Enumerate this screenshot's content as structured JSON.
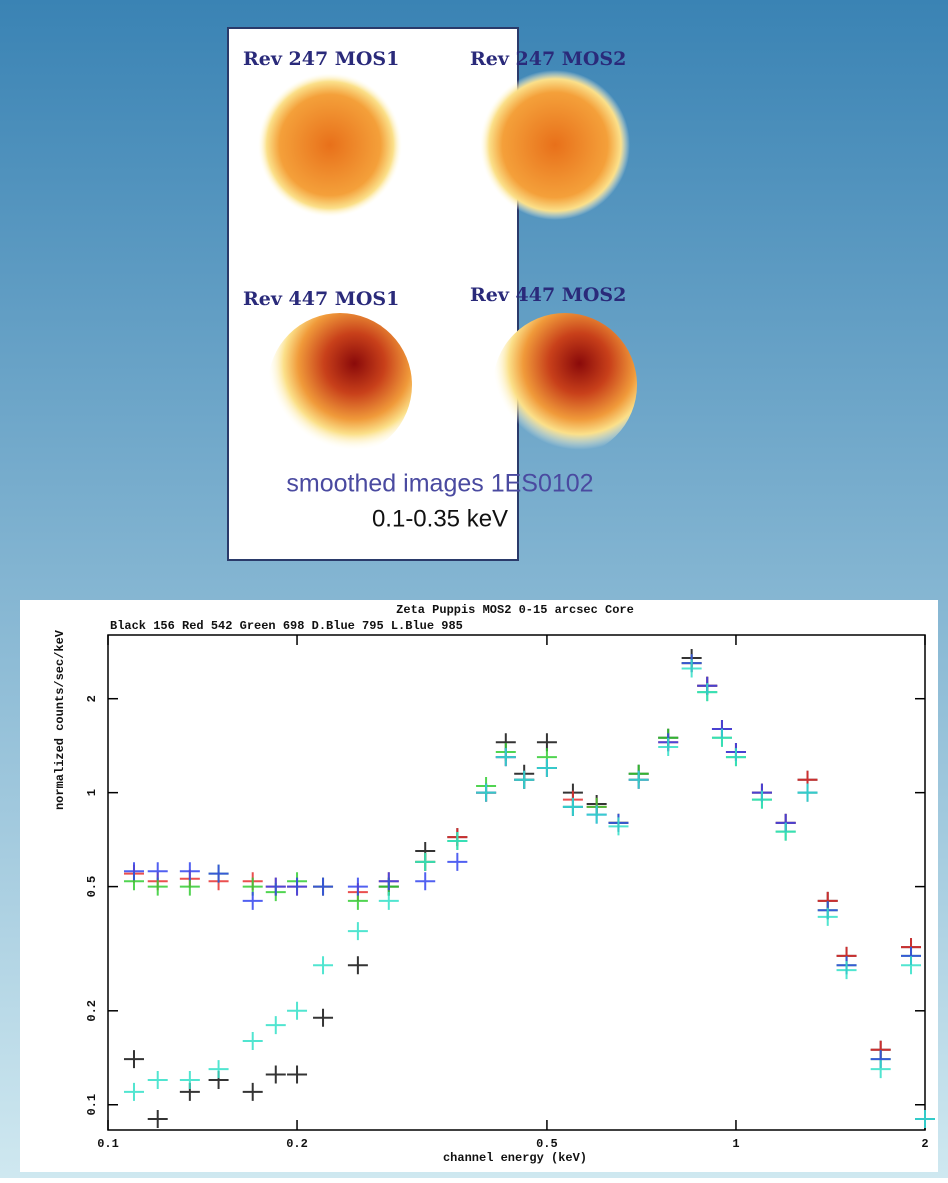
{
  "panel": {
    "images": [
      {
        "label": "Rev 247 MOS1"
      },
      {
        "label": "Rev 247 MOS2"
      },
      {
        "label": "Rev 447 MOS1"
      },
      {
        "label": "Rev 447 MOS2"
      }
    ],
    "caption": "smoothed images 1ES0102",
    "band": "0.1-0.35 keV"
  },
  "chart_data": {
    "type": "scatter",
    "title": "Zeta Puppis  MOS2  0-15 arcsec Core",
    "subtitle": "Black 156   Red 542   Green 698   D.Blue 795   L.Blue 985",
    "x_label": "channel energy (keV)",
    "y_label": "normalized counts/sec/keV",
    "log_x": true,
    "log_y": true,
    "xlim": [
      0.1,
      2
    ],
    "ylim": [
      0.083,
      3.2
    ],
    "xticks": [
      0.1,
      0.2,
      0.5,
      1,
      2
    ],
    "yticks": [
      0.1,
      0.2,
      0.5,
      1,
      2
    ],
    "x": [
      0.11,
      0.12,
      0.135,
      0.15,
      0.17,
      0.185,
      0.2,
      0.22,
      0.25,
      0.28,
      0.32,
      0.36,
      0.4,
      0.43,
      0.46,
      0.5,
      0.55,
      0.6,
      0.65,
      0.7,
      0.78,
      0.85,
      0.9,
      0.95,
      1.0,
      1.1,
      1.2,
      1.3,
      1.4,
      1.5,
      1.7,
      1.9,
      2.0
    ],
    "series": [
      {
        "color": "#111111",
        "values": [
          0.14,
          0.09,
          0.11,
          0.12,
          0.11,
          0.125,
          0.125,
          0.19,
          0.28,
          0.5,
          0.65,
          0.72,
          1.0,
          1.45,
          1.15,
          1.45,
          1.0,
          0.92,
          0.8,
          1.15,
          1.5,
          2.7,
          2.2,
          1.6,
          1.35,
          1.0,
          0.8,
          1.1,
          0.45,
          0.3,
          0.15,
          0.32,
          0.09
        ]
      },
      {
        "color": "#e63030",
        "values": [
          0.55,
          0.52,
          0.53,
          0.52,
          0.52,
          0.5,
          0.5,
          0.5,
          0.48,
          0.52,
          0.6,
          0.72,
          1.0,
          1.3,
          1.1,
          1.2,
          0.95,
          0.9,
          0.8,
          1.1,
          1.45,
          2.6,
          2.2,
          1.6,
          1.35,
          1.0,
          0.8,
          1.1,
          0.45,
          0.3,
          0.15,
          0.32,
          0.09
        ]
      },
      {
        "color": "#33cc33",
        "values": [
          0.52,
          0.5,
          0.5,
          0.55,
          0.5,
          0.48,
          0.52,
          0.5,
          0.45,
          0.5,
          0.6,
          0.7,
          1.05,
          1.35,
          1.1,
          1.3,
          0.9,
          0.9,
          0.8,
          1.15,
          1.5,
          2.6,
          2.1,
          1.5,
          1.3,
          0.95,
          0.75,
          1.0,
          0.42,
          0.28,
          0.14,
          0.3,
          0.09
        ]
      },
      {
        "color": "#3344ee",
        "values": [
          0.56,
          0.56,
          0.56,
          0.55,
          0.45,
          0.5,
          0.5,
          0.5,
          0.5,
          0.52,
          0.52,
          0.6,
          1.0,
          1.3,
          1.1,
          1.2,
          0.9,
          0.85,
          0.8,
          1.1,
          1.45,
          2.6,
          2.2,
          1.6,
          1.35,
          1.0,
          0.8,
          1.0,
          0.42,
          0.28,
          0.14,
          0.3,
          0.09
        ]
      },
      {
        "color": "#33e0c8",
        "values": [
          0.11,
          0.12,
          0.12,
          0.13,
          0.16,
          0.18,
          0.2,
          0.28,
          0.36,
          0.45,
          0.6,
          0.7,
          1.0,
          1.3,
          1.1,
          1.2,
          0.9,
          0.85,
          0.78,
          1.1,
          1.4,
          2.5,
          2.1,
          1.5,
          1.3,
          0.95,
          0.75,
          1.0,
          0.4,
          0.27,
          0.13,
          0.28,
          0.09
        ]
      }
    ]
  }
}
